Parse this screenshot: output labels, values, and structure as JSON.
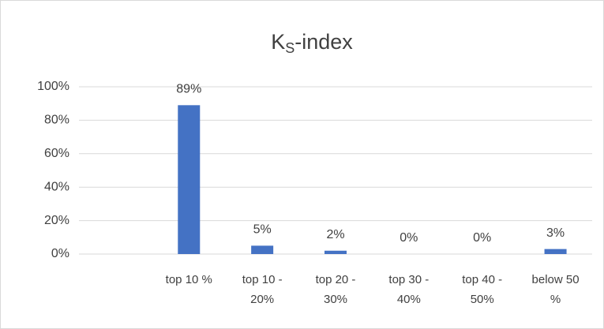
{
  "chart_data": {
    "type": "bar",
    "title": [
      "K",
      "S",
      "-index"
    ],
    "categories": [
      null,
      "top 10 %",
      "top 10 - 20%",
      "top 20 - 30%",
      "top 30 - 40%",
      "top 40 - 50%",
      "below 50 %"
    ],
    "values": [
      null,
      89,
      5,
      2,
      0,
      0,
      3
    ],
    "value_labels": [
      null,
      "89%",
      "5%",
      "2%",
      "0%",
      "0%",
      "3%"
    ],
    "color": "#4472c4",
    "ylim": [
      0,
      100
    ],
    "yticks": [
      {
        "value": 0,
        "label": "0%"
      },
      {
        "value": 20,
        "label": "20%"
      },
      {
        "value": 40,
        "label": "40%"
      },
      {
        "value": 60,
        "label": "60%"
      },
      {
        "value": 80,
        "label": "80%"
      },
      {
        "value": 100,
        "label": "100%"
      }
    ],
    "grid": true
  }
}
